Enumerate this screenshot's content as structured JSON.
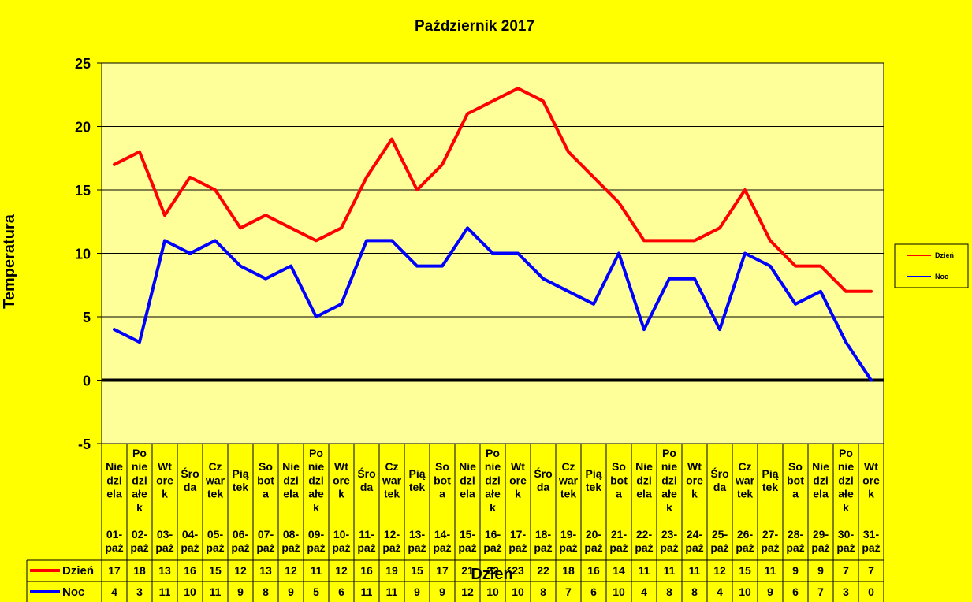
{
  "chart_data": {
    "type": "line",
    "title": "Październik 2017",
    "xlabel": "Dzień",
    "ylabel": "Temperatura",
    "ylim": [
      -5,
      25
    ],
    "yticks": [
      "-5",
      "0",
      "5",
      "10",
      "15",
      "20",
      "25"
    ],
    "grid": true,
    "legend_position": "right",
    "categories": [
      {
        "day": [
          "Nie",
          "dzi",
          "ela"
        ],
        "date": [
          "01-",
          "paź"
        ]
      },
      {
        "day": [
          "Po",
          "nie",
          "dzi",
          "ałe",
          "k"
        ],
        "date": [
          "02-",
          "paź"
        ]
      },
      {
        "day": [
          "Wt",
          "ore",
          "k"
        ],
        "date": [
          "03-",
          "paź"
        ]
      },
      {
        "day": [
          "Śro",
          "da"
        ],
        "date": [
          "04-",
          "paź"
        ]
      },
      {
        "day": [
          "Cz",
          "war",
          "tek"
        ],
        "date": [
          "05-",
          "paź"
        ]
      },
      {
        "day": [
          "Pią",
          "tek"
        ],
        "date": [
          "06-",
          "paź"
        ]
      },
      {
        "day": [
          "So",
          "bot",
          "a"
        ],
        "date": [
          "07-",
          "paź"
        ]
      },
      {
        "day": [
          "Nie",
          "dzi",
          "ela"
        ],
        "date": [
          "08-",
          "paź"
        ]
      },
      {
        "day": [
          "Po",
          "nie",
          "dzi",
          "ałe",
          "k"
        ],
        "date": [
          "09-",
          "paź"
        ]
      },
      {
        "day": [
          "Wt",
          "ore",
          "k"
        ],
        "date": [
          "10-",
          "paź"
        ]
      },
      {
        "day": [
          "Śro",
          "da"
        ],
        "date": [
          "11-",
          "paź"
        ]
      },
      {
        "day": [
          "Cz",
          "war",
          "tek"
        ],
        "date": [
          "12-",
          "paź"
        ]
      },
      {
        "day": [
          "Pią",
          "tek"
        ],
        "date": [
          "13-",
          "paź"
        ]
      },
      {
        "day": [
          "So",
          "bot",
          "a"
        ],
        "date": [
          "14-",
          "paź"
        ]
      },
      {
        "day": [
          "Nie",
          "dzi",
          "ela"
        ],
        "date": [
          "15-",
          "paź"
        ]
      },
      {
        "day": [
          "Po",
          "nie",
          "dzi",
          "ałe",
          "k"
        ],
        "date": [
          "16-",
          "paź"
        ]
      },
      {
        "day": [
          "Wt",
          "ore",
          "k"
        ],
        "date": [
          "17-",
          "paź"
        ]
      },
      {
        "day": [
          "Śro",
          "da"
        ],
        "date": [
          "18-",
          "paź"
        ]
      },
      {
        "day": [
          "Cz",
          "war",
          "tek"
        ],
        "date": [
          "19-",
          "paź"
        ]
      },
      {
        "day": [
          "Pią",
          "tek"
        ],
        "date": [
          "20-",
          "paź"
        ]
      },
      {
        "day": [
          "So",
          "bot",
          "a"
        ],
        "date": [
          "21-",
          "paź"
        ]
      },
      {
        "day": [
          "Nie",
          "dzi",
          "ela"
        ],
        "date": [
          "22-",
          "paź"
        ]
      },
      {
        "day": [
          "Po",
          "nie",
          "dzi",
          "ałe",
          "k"
        ],
        "date": [
          "23-",
          "paź"
        ]
      },
      {
        "day": [
          "Wt",
          "ore",
          "k"
        ],
        "date": [
          "24-",
          "paź"
        ]
      },
      {
        "day": [
          "Śro",
          "da"
        ],
        "date": [
          "25-",
          "paź"
        ]
      },
      {
        "day": [
          "Cz",
          "war",
          "tek"
        ],
        "date": [
          "26-",
          "paź"
        ]
      },
      {
        "day": [
          "Pią",
          "tek"
        ],
        "date": [
          "27-",
          "paź"
        ]
      },
      {
        "day": [
          "So",
          "bot",
          "a"
        ],
        "date": [
          "28-",
          "paź"
        ]
      },
      {
        "day": [
          "Nie",
          "dzi",
          "ela"
        ],
        "date": [
          "29-",
          "paź"
        ]
      },
      {
        "day": [
          "Po",
          "nie",
          "dzi",
          "ałe",
          "k"
        ],
        "date": [
          "30-",
          "paź"
        ]
      },
      {
        "day": [
          "Wt",
          "ore",
          "k"
        ],
        "date": [
          "31-",
          "paź"
        ]
      }
    ],
    "series": [
      {
        "name": "Dzień",
        "color": "#ff0000",
        "values": [
          17,
          18,
          13,
          16,
          15,
          12,
          13,
          12,
          11,
          12,
          16,
          19,
          15,
          17,
          21,
          22,
          23,
          22,
          18,
          16,
          14,
          11,
          11,
          11,
          12,
          15,
          11,
          9,
          9,
          7,
          7
        ]
      },
      {
        "name": "Noc",
        "color": "#0000ff",
        "values": [
          4,
          3,
          11,
          10,
          11,
          9,
          8,
          9,
          5,
          6,
          11,
          11,
          9,
          9,
          12,
          10,
          10,
          8,
          7,
          6,
          10,
          4,
          8,
          8,
          4,
          10,
          9,
          6,
          7,
          3,
          0
        ]
      }
    ]
  },
  "colors": {
    "background": "#ffff00",
    "plot_area": "#ffff99",
    "grid": "#000000",
    "zero_line": "#000000"
  }
}
